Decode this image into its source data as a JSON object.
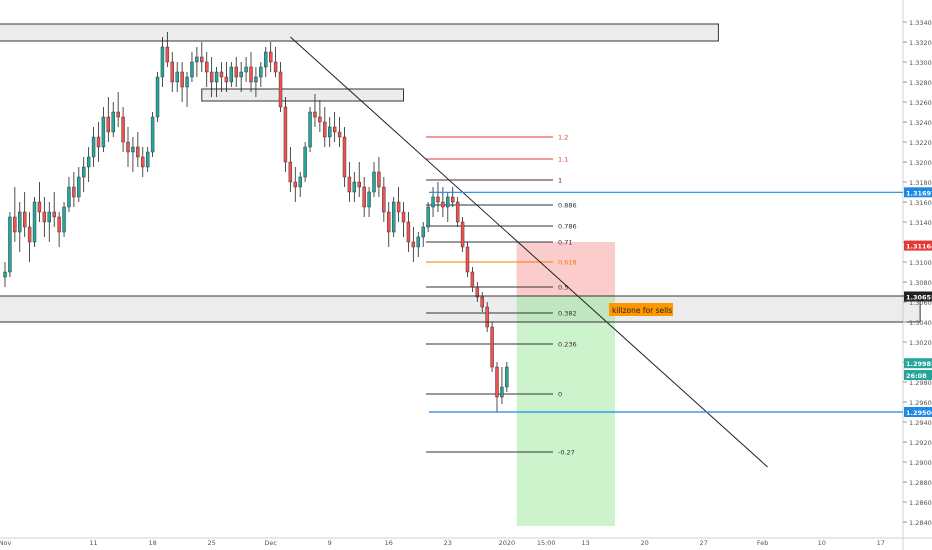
{
  "chart_data": {
    "type": "candlestick",
    "title": "",
    "xlabel": "",
    "ylabel": "",
    "ylim": [
      1.2828,
      1.3354
    ],
    "y_ticks": [
      1.334,
      1.332,
      1.33,
      1.328,
      1.326,
      1.324,
      1.322,
      1.32,
      1.318,
      1.316,
      1.314,
      1.312,
      1.31,
      1.308,
      1.306,
      1.304,
      1.302,
      1.3,
      1.298,
      1.296,
      1.294,
      1.292,
      1.29,
      1.288,
      1.286,
      1.284
    ],
    "y_tick_labels": [
      "1.33400",
      "1.33200",
      "1.33000",
      "1.32800",
      "1.32600",
      "1.32400",
      "1.32200",
      "1.32000",
      "1.31800",
      "1.31600",
      "1.31400",
      "1.31200",
      "1.31000",
      "1.30800",
      "1.30600",
      "1.30400",
      "1.30200",
      "1.30000",
      "1.29800",
      "1.29600",
      "1.29400",
      "1.29200",
      "1.29000",
      "1.28800",
      "1.28600",
      "1.28400"
    ],
    "x_tick_labels": [
      {
        "label": "Nov",
        "bar": 0
      },
      {
        "label": "11",
        "bar": 18
      },
      {
        "label": "18",
        "bar": 30
      },
      {
        "label": "25",
        "bar": 42
      },
      {
        "label": "Dec",
        "bar": 54
      },
      {
        "label": "9",
        "bar": 66
      },
      {
        "label": "16",
        "bar": 78
      },
      {
        "label": "23",
        "bar": 90
      },
      {
        "label": "2020",
        "bar": 102
      },
      {
        "label": "15:00",
        "bar": 110
      },
      {
        "label": "13",
        "bar": 118
      },
      {
        "label": "20",
        "bar": 130
      },
      {
        "label": "27",
        "bar": 142
      },
      {
        "label": "Feb",
        "bar": 154
      },
      {
        "label": "10",
        "bar": 166
      },
      {
        "label": "17",
        "bar": 178
      }
    ],
    "candles": [
      [
        1.3085,
        1.31,
        1.3075,
        1.309
      ],
      [
        1.309,
        1.315,
        1.3085,
        1.3145
      ],
      [
        1.3145,
        1.3175,
        1.312,
        1.313
      ],
      [
        1.313,
        1.316,
        1.311,
        1.315
      ],
      [
        1.315,
        1.317,
        1.3125,
        1.3135
      ],
      [
        1.3135,
        1.315,
        1.31,
        1.312
      ],
      [
        1.312,
        1.3165,
        1.3115,
        1.316
      ],
      [
        1.316,
        1.318,
        1.314,
        1.315
      ],
      [
        1.315,
        1.3165,
        1.3125,
        1.314
      ],
      [
        1.314,
        1.316,
        1.312,
        1.315
      ],
      [
        1.315,
        1.317,
        1.3135,
        1.3145
      ],
      [
        1.3145,
        1.315,
        1.3115,
        1.313
      ],
      [
        1.313,
        1.316,
        1.3125,
        1.3155
      ],
      [
        1.3155,
        1.3185,
        1.315,
        1.3175
      ],
      [
        1.3175,
        1.319,
        1.3155,
        1.3165
      ],
      [
        1.3165,
        1.3195,
        1.316,
        1.3185
      ],
      [
        1.3185,
        1.3205,
        1.317,
        1.3195
      ],
      [
        1.3195,
        1.3215,
        1.318,
        1.3205
      ],
      [
        1.3205,
        1.3235,
        1.3195,
        1.3225
      ],
      [
        1.3225,
        1.324,
        1.32,
        1.3215
      ],
      [
        1.3215,
        1.3255,
        1.321,
        1.3245
      ],
      [
        1.3245,
        1.3265,
        1.322,
        1.323
      ],
      [
        1.323,
        1.326,
        1.3225,
        1.325
      ],
      [
        1.325,
        1.327,
        1.3235,
        1.3245
      ],
      [
        1.3245,
        1.3255,
        1.321,
        1.322
      ],
      [
        1.322,
        1.3235,
        1.3195,
        1.321
      ],
      [
        1.321,
        1.3225,
        1.319,
        1.3215
      ],
      [
        1.3215,
        1.323,
        1.3195,
        1.3205
      ],
      [
        1.3205,
        1.3215,
        1.3185,
        1.3195
      ],
      [
        1.3195,
        1.3215,
        1.319,
        1.321
      ],
      [
        1.321,
        1.325,
        1.3205,
        1.3245
      ],
      [
        1.3245,
        1.329,
        1.324,
        1.3285
      ],
      [
        1.3285,
        1.3325,
        1.3275,
        1.3315
      ],
      [
        1.3315,
        1.333,
        1.3295,
        1.33
      ],
      [
        1.33,
        1.331,
        1.327,
        1.328
      ],
      [
        1.328,
        1.33,
        1.327,
        1.329
      ],
      [
        1.329,
        1.33,
        1.326,
        1.3275
      ],
      [
        1.3275,
        1.329,
        1.3255,
        1.3285
      ],
      [
        1.3285,
        1.331,
        1.328,
        1.33
      ],
      [
        1.33,
        1.3315,
        1.3285,
        1.3305
      ],
      [
        1.3305,
        1.332,
        1.329,
        1.33
      ],
      [
        1.33,
        1.331,
        1.3275,
        1.329
      ],
      [
        1.329,
        1.3305,
        1.3265,
        1.328
      ],
      [
        1.328,
        1.3295,
        1.3265,
        1.329
      ],
      [
        1.329,
        1.33,
        1.327,
        1.3285
      ],
      [
        1.3285,
        1.33,
        1.327,
        1.328
      ],
      [
        1.328,
        1.33,
        1.3275,
        1.3295
      ],
      [
        1.3295,
        1.3305,
        1.3275,
        1.3285
      ],
      [
        1.3285,
        1.33,
        1.327,
        1.329
      ],
      [
        1.329,
        1.3305,
        1.328,
        1.3295
      ],
      [
        1.3295,
        1.331,
        1.327,
        1.328
      ],
      [
        1.328,
        1.3295,
        1.3265,
        1.3285
      ],
      [
        1.3285,
        1.33,
        1.3275,
        1.3295
      ],
      [
        1.3295,
        1.3315,
        1.3285,
        1.331
      ],
      [
        1.331,
        1.332,
        1.329,
        1.33
      ],
      [
        1.33,
        1.3315,
        1.3285,
        1.329
      ],
      [
        1.329,
        1.33,
        1.325,
        1.3255
      ],
      [
        1.3255,
        1.3265,
        1.319,
        1.32
      ],
      [
        1.32,
        1.3215,
        1.317,
        1.318
      ],
      [
        1.318,
        1.3195,
        1.316,
        1.3175
      ],
      [
        1.3175,
        1.319,
        1.3165,
        1.3185
      ],
      [
        1.3185,
        1.322,
        1.318,
        1.3215
      ],
      [
        1.3215,
        1.3255,
        1.321,
        1.325
      ],
      [
        1.325,
        1.3268,
        1.3235,
        1.3245
      ],
      [
        1.3245,
        1.3262,
        1.323,
        1.324
      ],
      [
        1.324,
        1.3255,
        1.3215,
        1.3225
      ],
      [
        1.3225,
        1.3245,
        1.3215,
        1.3235
      ],
      [
        1.3235,
        1.325,
        1.322,
        1.323
      ],
      [
        1.323,
        1.3245,
        1.3215,
        1.3225
      ],
      [
        1.3225,
        1.3235,
        1.3175,
        1.3185
      ],
      [
        1.3185,
        1.32,
        1.316,
        1.317
      ],
      [
        1.317,
        1.319,
        1.316,
        1.318
      ],
      [
        1.318,
        1.32,
        1.3165,
        1.3175
      ],
      [
        1.3175,
        1.3185,
        1.3145,
        1.3155
      ],
      [
        1.3155,
        1.3175,
        1.3145,
        1.317
      ],
      [
        1.317,
        1.32,
        1.3165,
        1.319
      ],
      [
        1.319,
        1.3205,
        1.3165,
        1.3175
      ],
      [
        1.3175,
        1.3185,
        1.314,
        1.315
      ],
      [
        1.315,
        1.316,
        1.3115,
        1.313
      ],
      [
        1.313,
        1.3165,
        1.3125,
        1.316
      ],
      [
        1.316,
        1.3175,
        1.314,
        1.315
      ],
      [
        1.315,
        1.316,
        1.3125,
        1.314
      ],
      [
        1.314,
        1.315,
        1.311,
        1.312
      ],
      [
        1.312,
        1.3135,
        1.31,
        1.3115
      ],
      [
        1.3115,
        1.313,
        1.3105,
        1.3125
      ],
      [
        1.3125,
        1.314,
        1.3115,
        1.3135
      ],
      [
        1.3135,
        1.316,
        1.313,
        1.3155
      ],
      [
        1.3155,
        1.3175,
        1.3145,
        1.3165
      ],
      [
        1.3165,
        1.318,
        1.315,
        1.316
      ],
      [
        1.316,
        1.3175,
        1.3145,
        1.3155
      ],
      [
        1.3155,
        1.317,
        1.314,
        1.3165
      ],
      [
        1.3165,
        1.3175,
        1.3155,
        1.316
      ],
      [
        1.316,
        1.3165,
        1.3135,
        1.314
      ],
      [
        1.314,
        1.3145,
        1.311,
        1.3115
      ],
      [
        1.3115,
        1.312,
        1.3085,
        1.309
      ],
      [
        1.309,
        1.3095,
        1.307,
        1.3075
      ],
      [
        1.3075,
        1.308,
        1.306,
        1.3065
      ],
      [
        1.3065,
        1.307,
        1.305,
        1.3055
      ],
      [
        1.3055,
        1.306,
        1.303,
        1.3035
      ],
      [
        1.3035,
        1.304,
        1.299,
        1.2995
      ],
      [
        1.2995,
        1.3,
        1.295,
        1.2965
      ],
      [
        1.2965,
        1.2995,
        1.2958,
        1.2975
      ],
      [
        1.2975,
        1.3,
        1.297,
        1.2995
      ]
    ],
    "horizontal_levels": [
      {
        "label": "1.2",
        "value": 1.3225,
        "color": "#e53935"
      },
      {
        "label": "1.1",
        "value": 1.3203,
        "color": "#e53935"
      },
      {
        "label": "1",
        "value": 1.3182,
        "color": "#333333"
      },
      {
        "label": "0.886",
        "value": 1.3157,
        "color": "#333333"
      },
      {
        "label": "0.786",
        "value": 1.3136,
        "color": "#333333"
      },
      {
        "label": "0.71",
        "value": 1.312,
        "color": "#333333"
      },
      {
        "label": "0.618",
        "value": 1.31,
        "color": "#f57c00"
      },
      {
        "label": "0.5",
        "value": 1.3075,
        "color": "#333333"
      },
      {
        "label": "0.382",
        "value": 1.3049,
        "color": "#333333"
      },
      {
        "label": "0.236",
        "value": 1.3018,
        "color": "#333333"
      },
      {
        "label": "0",
        "value": 1.2968,
        "color": "#333333"
      },
      {
        "label": "-0.27",
        "value": 1.291,
        "color": "#333333"
      }
    ],
    "price_lines": [
      {
        "value": 1.31697,
        "label": "1.31697",
        "color": "#1e88e5"
      },
      {
        "value": 1.295,
        "label": "1.29500",
        "color": "#1e88e5"
      }
    ],
    "price_badges": [
      {
        "value": 1.31697,
        "label": "1.31697",
        "color": "#1e88e5"
      },
      {
        "value": 1.31164,
        "label": "1.31164",
        "color": "#e53935"
      },
      {
        "value": 1.30655,
        "label": "1.30655",
        "color": "#222222"
      },
      {
        "value": 1.29988,
        "label": "1.29988",
        "color": "#26a69a"
      },
      {
        "value": 1.2987,
        "label": "26:08",
        "color": "#26a69a"
      },
      {
        "value": 1.295,
        "label": "1.29500",
        "color": "#1e88e5"
      }
    ],
    "zones": [
      {
        "from": 1.3321,
        "to": 1.3338,
        "bar_start": -2,
        "bar_end": 145
      },
      {
        "from": 1.3261,
        "to": 1.3273,
        "bar_start": 40,
        "bar_end": 81
      },
      {
        "from": 1.304,
        "to": 1.3066,
        "bar_start": -2,
        "bar_end": 186
      }
    ],
    "trendline": {
      "bar_start": 58,
      "price_start": 1.3325,
      "bar_end": 155,
      "price_end": 1.2895
    },
    "position": {
      "bar_start": 104,
      "bar_end": 124,
      "entry": 1.3066,
      "stop": 1.312,
      "target": 1.2836
    },
    "annotation": {
      "text": "killzone for sells",
      "value": 1.3052,
      "bar": 125
    }
  }
}
